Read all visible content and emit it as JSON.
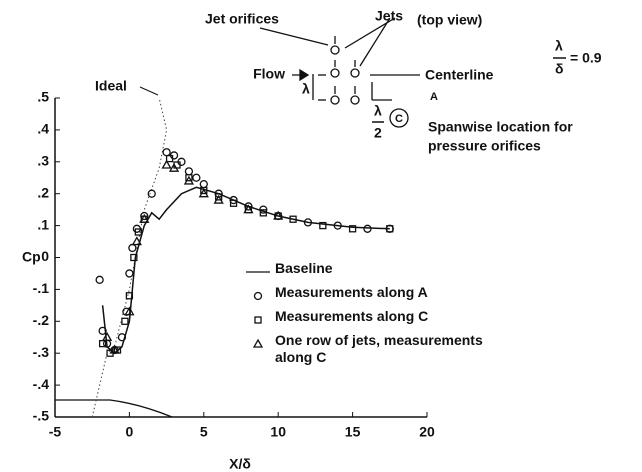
{
  "chart_data": {
    "type": "scatter",
    "xlabel": "X/δ",
    "ylabel": "Cp",
    "xlim": [
      -5,
      20
    ],
    "xticks": [
      -5,
      0,
      5,
      10,
      15,
      20
    ],
    "ylim": [
      -0.5,
      0.5
    ],
    "yticks": [
      {
        "value": 0.5,
        "label": ".5"
      },
      {
        "value": 0.4,
        "label": ".4"
      },
      {
        "value": 0.3,
        "label": ".3"
      },
      {
        "value": 0.2,
        "label": ".2"
      },
      {
        "value": 0.1,
        "label": ".1"
      },
      0,
      {
        "value": -0.1,
        "label": "-.1"
      },
      {
        "value": -0.2,
        "label": "-.2"
      },
      {
        "value": -0.3,
        "label": "-.3"
      },
      {
        "value": -0.4,
        "label": "-.4"
      },
      {
        "value": -0.5,
        "label": "-.5"
      }
    ],
    "legend": "lower right",
    "series": [
      {
        "name": "Baseline",
        "marker": "line",
        "color": "#111",
        "x": [
          -1.8,
          -1.5,
          -1,
          -0.5,
          0,
          0.4,
          1,
          1.5,
          2,
          2.5,
          3.5,
          4.5,
          6,
          8,
          10,
          12,
          15,
          17.5
        ],
        "values": [
          -0.15,
          -0.28,
          -0.3,
          -0.28,
          -0.2,
          0,
          0.1,
          0.14,
          0.12,
          0.15,
          0.2,
          0.22,
          0.2,
          0.16,
          0.13,
          0.11,
          0.095,
          0.09
        ]
      },
      {
        "name": "Measurements along A",
        "marker": "circle",
        "color": "#111",
        "x": [
          -2,
          -1.8,
          -1.5,
          -1,
          -0.5,
          -0.2,
          0,
          0.2,
          0.5,
          1,
          1.5,
          2.5,
          3,
          3.5,
          4,
          4.5,
          5,
          6,
          7,
          8,
          9,
          10,
          12,
          14,
          16,
          17.5
        ],
        "values": [
          -0.07,
          -0.23,
          -0.27,
          -0.29,
          -0.25,
          -0.17,
          -0.05,
          0.03,
          0.09,
          0.13,
          0.2,
          0.33,
          0.32,
          0.3,
          0.27,
          0.25,
          0.23,
          0.2,
          0.18,
          0.16,
          0.15,
          0.13,
          0.11,
          0.1,
          0.09,
          0.09
        ]
      },
      {
        "name": "Measurements along C",
        "marker": "square",
        "color": "#111",
        "x": [
          -1.8,
          -1.3,
          -0.8,
          -0.3,
          0,
          0.3,
          0.6,
          1,
          2.7,
          3.2,
          4,
          5,
          6,
          7,
          8,
          9,
          10,
          11,
          13,
          15,
          17.5
        ],
        "values": [
          -0.27,
          -0.3,
          -0.29,
          -0.2,
          -0.12,
          0,
          0.08,
          0.12,
          0.31,
          0.29,
          0.25,
          0.21,
          0.19,
          0.17,
          0.15,
          0.14,
          0.13,
          0.12,
          0.1,
          0.09,
          0.09
        ]
      },
      {
        "name": "One row of jets, measurements along C",
        "marker": "triangle",
        "color": "#111",
        "x": [
          -1.5,
          -1,
          0,
          0.5,
          1,
          2.5,
          3,
          4,
          5,
          6,
          8,
          10
        ],
        "values": [
          -0.25,
          -0.29,
          -0.17,
          0.05,
          0.12,
          0.29,
          0.28,
          0.24,
          0.2,
          0.18,
          0.15,
          0.13
        ]
      }
    ],
    "ideal": {
      "label": "Ideal",
      "x": [
        -2.5,
        -1.5,
        -1,
        0,
        1,
        2,
        2.5,
        2
      ],
      "values": [
        -0.5,
        -0.3,
        -0.28,
        -0.1,
        0.15,
        0.28,
        0.4,
        0.5
      ]
    },
    "schematic": {
      "jet_orifices": "Jet orifices",
      "jets": "Jets",
      "top_view": "(top view)",
      "flow": "Flow",
      "centerline": "Centerline",
      "lambda": "λ",
      "half_num": "λ",
      "half_den": "2",
      "a": "A",
      "c": "C",
      "spanwise_1": "Spanwise location for",
      "spanwise_2": "pressure orifices",
      "ratio_num": "λ",
      "ratio_den": "δ",
      "ratio_value": "= 0.9"
    }
  }
}
